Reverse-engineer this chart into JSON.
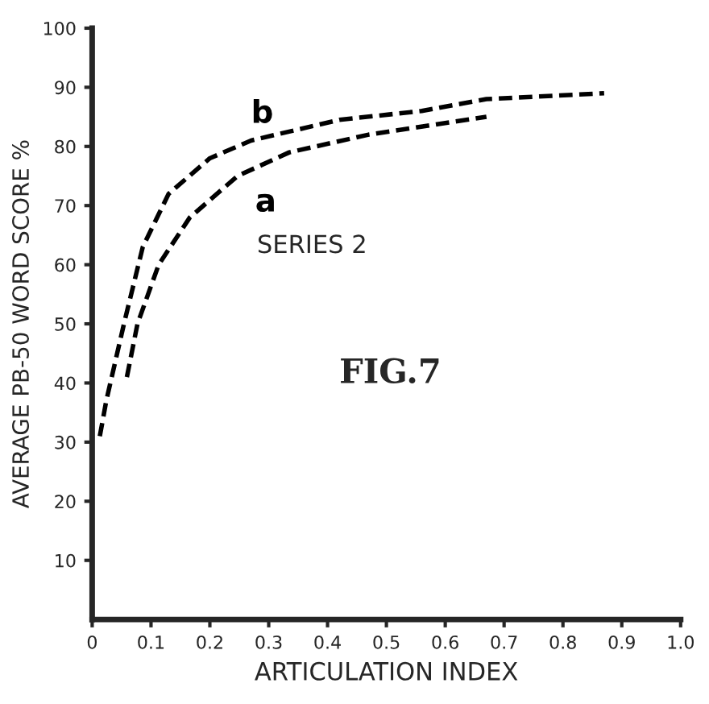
{
  "chart_data": {
    "type": "line",
    "xlabel": "ARTICULATION INDEX",
    "ylabel": "AVERAGE PB-50 WORD SCORE %",
    "xlim": [
      0,
      1.0
    ],
    "xticks": [
      0,
      0.1,
      0.2,
      0.3,
      0.4,
      0.5,
      0.6,
      0.7,
      0.8,
      0.9,
      {
        "value": 1.0,
        "label": "1.0"
      }
    ],
    "ylim": [
      0,
      100
    ],
    "yticks": [
      10,
      20,
      30,
      40,
      50,
      60,
      70,
      80,
      90,
      100
    ],
    "series": [
      {
        "name": "b",
        "color": "#000000",
        "x": [
          0.013,
          0.024,
          0.054,
          0.086,
          0.13,
          0.2,
          0.27,
          0.42,
          0.56,
          0.67,
          0.87
        ],
        "values": [
          31,
          37,
          50,
          63,
          72,
          78,
          81,
          84.5,
          86,
          88,
          89
        ]
      },
      {
        "name": "a",
        "color": "#000000",
        "x": [
          0.059,
          0.077,
          0.113,
          0.166,
          0.247,
          0.335,
          0.47,
          0.67
        ],
        "values": [
          41,
          50,
          60,
          68,
          75,
          79,
          82,
          85
        ]
      }
    ],
    "annotations": [
      "SERIES 2",
      "FIG.7"
    ],
    "line_style": "dashed",
    "marker": "none",
    "grid": false,
    "legend": false
  }
}
